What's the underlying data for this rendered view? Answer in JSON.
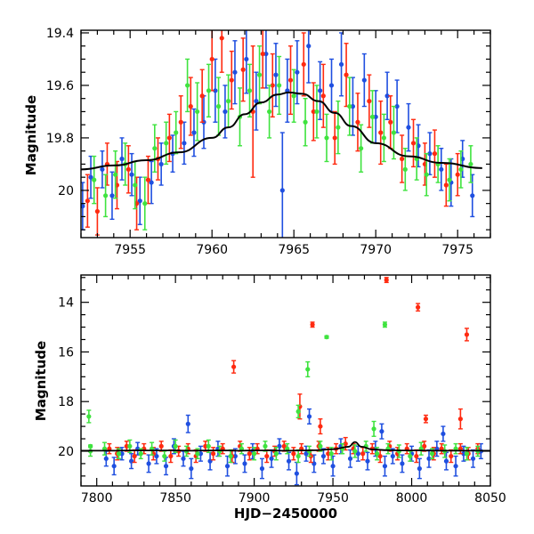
{
  "chart_data": [
    {
      "type": "scatter",
      "title": "",
      "xlabel": "",
      "ylabel": "Magnitude",
      "xlim": [
        7952,
        7977
      ],
      "ylim": [
        20.18,
        19.39
      ],
      "y_inverted": true,
      "grid": false,
      "x_ticks": [
        7955,
        7960,
        7965,
        7970,
        7975
      ],
      "x_tick_labels": [
        "7955",
        "7960",
        "7965",
        "7970",
        "7975"
      ],
      "y_ticks": [
        19.4,
        19.6,
        19.8,
        20.0
      ],
      "y_tick_labels": [
        "19.4",
        "19.6",
        "19.8",
        "20"
      ],
      "model_curve": {
        "name": "model",
        "color": "#000000",
        "x": [
          7952.0,
          7954.0,
          7956.0,
          7958.0,
          7960.0,
          7961.0,
          7962.0,
          7963.0,
          7964.0,
          7964.7,
          7965.5,
          7966.5,
          7967.5,
          7968.5,
          7970.0,
          7972.0,
          7974.0,
          7976.5
        ],
        "y": [
          19.92,
          19.905,
          19.885,
          19.855,
          19.8,
          19.76,
          19.71,
          19.665,
          19.635,
          19.627,
          19.632,
          19.66,
          19.705,
          19.755,
          19.82,
          19.87,
          19.895,
          19.915
        ]
      },
      "series": [
        {
          "name": "",
          "color": "#1f4fe0",
          "x": [
            7952.1,
            7952.6,
            7953.3,
            7953.9,
            7954.5,
            7955.1,
            7955.6,
            7956.3,
            7956.9,
            7957.6,
            7958.3,
            7958.9,
            7959.5,
            7960.2,
            7960.8,
            7961.4,
            7962.1,
            7962.7,
            7963.3,
            7963.9,
            7964.3,
            7964.6,
            7965.2,
            7965.9,
            7966.6,
            7967.3,
            7967.9,
            7968.6,
            7969.3,
            7970.0,
            7970.7,
            7971.3,
            7972.0,
            7972.6,
            7973.3,
            7974.0,
            7974.6,
            7975.3,
            7975.9
          ],
          "y": [
            20.06,
            19.95,
            19.92,
            20.02,
            19.88,
            19.94,
            20.04,
            19.97,
            19.9,
            19.86,
            19.82,
            19.78,
            19.74,
            19.62,
            19.7,
            19.55,
            19.5,
            19.66,
            19.48,
            19.56,
            20.0,
            19.62,
            19.55,
            19.45,
            19.62,
            19.6,
            19.52,
            19.68,
            19.58,
            19.72,
            19.64,
            19.68,
            19.76,
            19.83,
            19.86,
            19.92,
            19.97,
            19.88,
            20.02
          ],
          "yerr": [
            0.09,
            0.08,
            0.07,
            0.09,
            0.08,
            0.08,
            0.09,
            0.08,
            0.08,
            0.07,
            0.08,
            0.09,
            0.1,
            0.12,
            0.1,
            0.12,
            0.13,
            0.11,
            0.13,
            0.12,
            0.22,
            0.12,
            0.12,
            0.14,
            0.11,
            0.1,
            0.12,
            0.11,
            0.1,
            0.1,
            0.09,
            0.1,
            0.09,
            0.08,
            0.08,
            0.08,
            0.09,
            0.07,
            0.08
          ]
        },
        {
          "name": "",
          "color": "#ff2a10",
          "x": [
            7952.4,
            7953.0,
            7953.6,
            7954.2,
            7954.9,
            7955.4,
            7956.1,
            7956.7,
            7957.4,
            7958.1,
            7958.7,
            7959.4,
            7960.0,
            7960.6,
            7961.2,
            7961.9,
            7962.5,
            7963.1,
            7963.7,
            7964.8,
            7965.6,
            7966.2,
            7966.8,
            7967.5,
            7968.2,
            7968.9,
            7969.6,
            7970.3,
            7970.9,
            7971.6,
            7972.3,
            7973.0,
            7973.6,
            7974.3,
            7975.0
          ],
          "y": [
            20.04,
            20.08,
            19.9,
            19.98,
            19.92,
            20.05,
            19.96,
            19.88,
            19.8,
            19.74,
            19.68,
            19.64,
            19.5,
            19.42,
            19.58,
            19.54,
            19.7,
            19.48,
            19.6,
            19.58,
            19.52,
            19.7,
            19.64,
            19.8,
            19.56,
            19.74,
            19.66,
            19.78,
            19.74,
            19.88,
            19.82,
            19.9,
            19.86,
            19.98,
            19.94
          ],
          "yerr": [
            0.1,
            0.09,
            0.08,
            0.09,
            0.09,
            0.1,
            0.09,
            0.08,
            0.09,
            0.1,
            0.11,
            0.1,
            0.12,
            0.13,
            0.11,
            0.12,
            0.25,
            0.13,
            0.12,
            0.13,
            0.12,
            0.11,
            0.12,
            0.1,
            0.12,
            0.11,
            0.1,
            0.12,
            0.1,
            0.09,
            0.09,
            0.08,
            0.09,
            0.08,
            0.08
          ]
        },
        {
          "name": "",
          "color": "#3fe33f",
          "x": [
            7952.8,
            7953.5,
            7954.1,
            7954.7,
            7955.3,
            7955.9,
            7956.5,
            7957.2,
            7957.8,
            7958.5,
            7959.1,
            7959.8,
            7960.4,
            7961.0,
            7961.7,
            7962.3,
            7962.9,
            7963.5,
            7964.1,
            7965.0,
            7965.7,
            7966.4,
            7967.0,
            7967.7,
            7968.4,
            7969.1,
            7969.8,
            7970.5,
            7971.1,
            7971.8,
            7972.5,
            7973.1,
            7973.8,
            7974.5,
            7975.2,
            7975.8
          ],
          "y": [
            19.96,
            20.02,
            19.94,
            19.9,
            19.98,
            20.05,
            19.84,
            19.82,
            19.78,
            19.6,
            19.7,
            19.62,
            19.68,
            19.66,
            19.72,
            19.62,
            19.56,
            19.7,
            19.6,
            19.64,
            19.74,
            19.7,
            19.8,
            19.76,
            19.68,
            19.84,
            19.72,
            19.8,
            19.78,
            19.92,
            19.88,
            19.94,
            19.9,
            19.96,
            19.92,
            19.9
          ],
          "yerr": [
            0.09,
            0.08,
            0.09,
            0.08,
            0.09,
            0.1,
            0.09,
            0.08,
            0.08,
            0.1,
            0.11,
            0.1,
            0.11,
            0.1,
            0.11,
            0.1,
            0.11,
            0.1,
            0.11,
            0.1,
            0.09,
            0.1,
            0.09,
            0.1,
            0.11,
            0.09,
            0.1,
            0.09,
            0.1,
            0.08,
            0.08,
            0.08,
            0.07,
            0.08,
            0.07,
            0.07
          ]
        }
      ]
    },
    {
      "type": "scatter",
      "title": "",
      "xlabel": "HJD−2450000",
      "ylabel": "Magnitude",
      "xlim": [
        7790,
        8050
      ],
      "ylim": [
        21.4,
        12.9
      ],
      "y_inverted": true,
      "grid": false,
      "x_ticks": [
        7800,
        7850,
        7900,
        7950,
        8000,
        8050
      ],
      "x_tick_labels": [
        "7800",
        "7850",
        "7900",
        "7950",
        "8000",
        "8050"
      ],
      "y_ticks": [
        14,
        16,
        18,
        20
      ],
      "y_tick_labels": [
        "14",
        "16",
        "18",
        "20"
      ],
      "model_curve": {
        "name": "model",
        "color": "#000000",
        "x": [
          7790,
          7800,
          7810,
          7820,
          7830,
          7840,
          7850,
          7860,
          7870,
          7880,
          7890,
          7900,
          7910,
          7920,
          7930,
          7940,
          7950,
          7960,
          7964,
          7968,
          7975,
          7985,
          7995,
          8005,
          8015,
          8025,
          8035,
          8045,
          8050
        ],
        "y": [
          19.98,
          19.98,
          19.98,
          19.97,
          19.97,
          19.97,
          19.97,
          19.98,
          19.97,
          19.97,
          19.98,
          19.97,
          19.97,
          19.98,
          19.97,
          19.96,
          19.92,
          19.82,
          19.63,
          19.82,
          19.93,
          19.96,
          19.97,
          19.97,
          19.98,
          19.98,
          19.98,
          19.98,
          19.98
        ]
      },
      "series": [
        {
          "name": "",
          "color": "#1f4fe0",
          "x": [
            7806,
            7811,
            7816,
            7822,
            7826,
            7833,
            7838,
            7844,
            7849,
            7855,
            7860,
            7866,
            7872,
            7877,
            7883,
            7888,
            7894,
            7899,
            7905,
            7911,
            7916,
            7922,
            7927,
            7933,
            7938,
            7944,
            7950,
            7955,
            7961,
            7966,
            7972,
            7977,
            7983,
            7988,
            7994,
            8000,
            8005,
            8011,
            8016,
            8022,
            8028,
            8033,
            8039,
            8044,
            7858,
            7935,
            7981,
            8020
          ],
          "y": [
            20.3,
            20.6,
            20.1,
            20.4,
            19.9,
            20.5,
            20.2,
            20.6,
            19.8,
            20.3,
            20.7,
            20.1,
            20.4,
            19.9,
            20.6,
            20.2,
            20.5,
            20.0,
            20.7,
            20.3,
            19.8,
            20.4,
            20.9,
            20.1,
            20.5,
            20.2,
            20.6,
            19.8,
            20.3,
            20.1,
            20.4,
            19.9,
            20.6,
            20.2,
            20.5,
            20.1,
            20.7,
            20.3,
            19.9,
            20.4,
            20.6,
            20.1,
            20.3,
            20.0,
            18.9,
            18.6,
            19.2,
            19.3
          ],
          "yerr": [
            0.3,
            0.35,
            0.25,
            0.3,
            0.25,
            0.35,
            0.3,
            0.35,
            0.3,
            0.3,
            0.4,
            0.3,
            0.35,
            0.3,
            0.4,
            0.3,
            0.35,
            0.3,
            0.4,
            0.35,
            0.3,
            0.35,
            0.45,
            0.3,
            0.35,
            0.3,
            0.4,
            0.3,
            0.35,
            0.3,
            0.35,
            0.3,
            0.4,
            0.3,
            0.35,
            0.3,
            0.4,
            0.35,
            0.3,
            0.35,
            0.4,
            0.3,
            0.35,
            0.3,
            0.35,
            0.3,
            0.3,
            0.3
          ]
        },
        {
          "name": "",
          "color": "#ff2a10",
          "x": [
            7808,
            7813,
            7819,
            7824,
            7830,
            7836,
            7841,
            7847,
            7852,
            7858,
            7863,
            7869,
            7874,
            7880,
            7886,
            7891,
            7897,
            7902,
            7908,
            7913,
            7919,
            7925,
            7930,
            7936,
            7941,
            7947,
            7952,
            7958,
            7963,
            7969,
            7975,
            7980,
            7986,
            7991,
            7997,
            8003,
            8008,
            8014,
            8019,
            8025,
            8031,
            8036,
            8042,
            7887,
            7937,
            7984,
            8004,
            8035,
            8031,
            7929,
            8009,
            7942
          ],
          "y": [
            19.9,
            20.1,
            19.8,
            20.2,
            19.9,
            20.1,
            19.8,
            20.2,
            20.0,
            19.9,
            20.2,
            19.8,
            20.1,
            19.9,
            20.2,
            19.8,
            20.1,
            19.9,
            20.2,
            20.0,
            19.8,
            20.1,
            19.9,
            20.2,
            19.8,
            20.1,
            19.9,
            19.7,
            19.9,
            20.1,
            19.9,
            20.2,
            19.8,
            20.1,
            19.9,
            20.2,
            19.8,
            20.1,
            19.9,
            20.2,
            19.9,
            20.1,
            19.9,
            16.6,
            14.9,
            13.1,
            14.2,
            15.3,
            18.7,
            18.2,
            18.7,
            19.0
          ],
          "yerr": [
            0.2,
            0.25,
            0.2,
            0.25,
            0.2,
            0.25,
            0.2,
            0.25,
            0.2,
            0.2,
            0.25,
            0.2,
            0.25,
            0.2,
            0.25,
            0.2,
            0.25,
            0.2,
            0.25,
            0.2,
            0.2,
            0.25,
            0.2,
            0.25,
            0.2,
            0.25,
            0.2,
            0.25,
            0.2,
            0.25,
            0.2,
            0.25,
            0.2,
            0.25,
            0.2,
            0.25,
            0.2,
            0.25,
            0.2,
            0.25,
            0.2,
            0.25,
            0.2,
            0.25,
            0.1,
            0.1,
            0.15,
            0.25,
            0.4,
            0.5,
            0.15,
            0.3
          ]
        },
        {
          "name": "",
          "color": "#3fe33f",
          "x": [
            7796,
            7805,
            7814,
            7821,
            7828,
            7835,
            7843,
            7850,
            7857,
            7864,
            7871,
            7878,
            7885,
            7892,
            7900,
            7907,
            7914,
            7921,
            7928,
            7935,
            7942,
            7949,
            7956,
            7964,
            7971,
            7978,
            7985,
            7992,
            7999,
            8006,
            8013,
            8021,
            8028,
            8035,
            8042,
            7946,
            7983,
            7934,
            7795,
            7796,
            7928,
            7976
          ],
          "y": [
            20.0,
            19.9,
            20.1,
            19.8,
            20.1,
            19.9,
            20.2,
            19.8,
            20.0,
            20.1,
            19.8,
            20.0,
            20.2,
            19.9,
            20.1,
            19.8,
            20.1,
            19.9,
            20.2,
            20.0,
            19.8,
            20.1,
            19.9,
            20.0,
            19.8,
            20.1,
            19.9,
            20.0,
            20.2,
            19.9,
            20.1,
            20.0,
            19.9,
            20.1,
            20.0,
            15.4,
            14.9,
            16.7,
            18.6,
            19.8,
            18.4,
            19.1
          ],
          "yerr": [
            0.2,
            0.25,
            0.2,
            0.25,
            0.2,
            0.25,
            0.2,
            0.25,
            0.2,
            0.2,
            0.25,
            0.2,
            0.25,
            0.2,
            0.25,
            0.2,
            0.25,
            0.2,
            0.25,
            0.2,
            0.2,
            0.25,
            0.2,
            0.25,
            0.2,
            0.25,
            0.2,
            0.25,
            0.2,
            0.25,
            0.2,
            0.25,
            0.2,
            0.25,
            0.2,
            0.05,
            0.1,
            0.3,
            0.25,
            0.05,
            0.25,
            0.3
          ]
        }
      ]
    }
  ]
}
